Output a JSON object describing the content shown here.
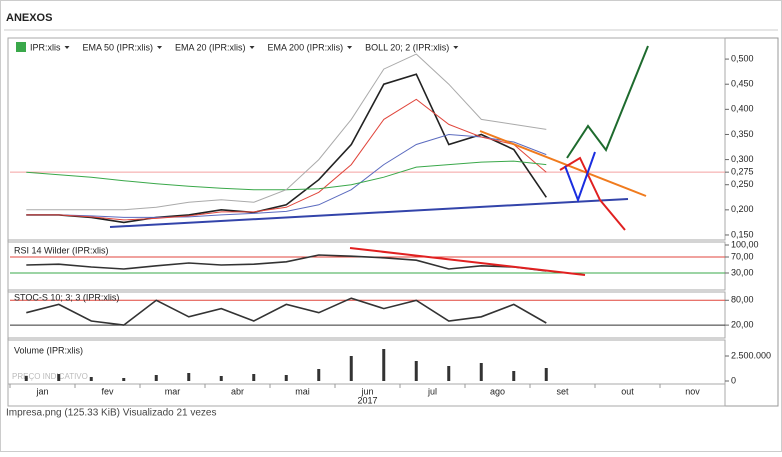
{
  "header": {
    "title": "ANEXOS"
  },
  "caption": "Impresa.png (125.33 KiB) Visualizado 21 vezes",
  "chart_data": [
    {
      "type": "line",
      "x_label": "2017",
      "categories": [
        "jan",
        null,
        "fev",
        null,
        "mar",
        null,
        "abr",
        null,
        "mai",
        null,
        "jun",
        null,
        "jul",
        null,
        "ago",
        null,
        "set",
        null,
        "out",
        null,
        "nov",
        null
      ],
      "ylim": [
        0.14,
        0.53
      ],
      "yticks": [
        {
          "value": 0.15,
          "label": "0,150"
        },
        {
          "value": 0.2,
          "label": "0,200"
        },
        {
          "value": 0.25,
          "label": "0,250"
        },
        {
          "value": 0.275,
          "label": "0,275",
          "color": "#f4a0a0"
        },
        {
          "value": 0.3,
          "label": "0,300"
        },
        {
          "value": 0.35,
          "label": "0,350"
        },
        {
          "value": 0.4,
          "label": "0,400"
        },
        {
          "value": 0.45,
          "label": "0,450"
        },
        {
          "value": 0.5,
          "label": "0,500"
        }
      ],
      "series": [
        {
          "name": "IPR:xlis",
          "color": "#222222",
          "values": [
            0.19,
            0.19,
            0.185,
            0.175,
            0.185,
            0.19,
            0.2,
            0.195,
            0.21,
            0.26,
            0.33,
            0.45,
            0.47,
            0.33,
            0.35,
            0.32,
            0.225,
            null,
            null,
            null,
            null,
            null
          ]
        },
        {
          "name": "EMA 50 (IPR:xlis)",
          "color": "#5b6bbf",
          "values": [
            0.19,
            0.19,
            0.188,
            0.185,
            0.185,
            0.186,
            0.19,
            0.193,
            0.197,
            0.21,
            0.24,
            0.29,
            0.33,
            0.35,
            0.345,
            0.335,
            0.31,
            null,
            null,
            null,
            null,
            null
          ]
        },
        {
          "name": "EMA 20 (IPR:xlis)",
          "color": "#e0463c",
          "values": [
            0.19,
            0.19,
            0.186,
            0.18,
            0.183,
            0.188,
            0.196,
            0.196,
            0.205,
            0.235,
            0.29,
            0.38,
            0.42,
            0.37,
            0.345,
            0.33,
            0.275,
            null,
            null,
            null,
            null,
            null
          ]
        },
        {
          "name": "EMA 200 (IPR:xlis)",
          "color": "#3aa84a",
          "values": [
            0.275,
            0.27,
            0.265,
            0.258,
            0.252,
            0.247,
            0.243,
            0.24,
            0.24,
            0.242,
            0.25,
            0.265,
            0.285,
            0.29,
            0.295,
            0.297,
            0.29,
            null,
            null,
            null,
            null,
            null
          ]
        },
        {
          "name": "BOLL 20; 2 (IPR:xlis)",
          "color": "#aaaaaa",
          "values": [
            0.2,
            0.2,
            0.2,
            0.2,
            0.205,
            0.215,
            0.22,
            0.215,
            0.24,
            0.3,
            0.38,
            0.48,
            0.51,
            0.45,
            0.38,
            0.37,
            0.36,
            null,
            null,
            null,
            null,
            null
          ]
        }
      ]
    },
    {
      "type": "line",
      "title": "RSI 14 Wilder (IPR:xlis)",
      "ylim": [
        -5,
        100
      ],
      "yticks": [
        {
          "value": 30,
          "label": "30,00",
          "color": "#3aa84a"
        },
        {
          "value": 70,
          "label": "70,00",
          "color": "#e0463c"
        },
        {
          "value": 100,
          "label": "100,00"
        }
      ],
      "series": [
        {
          "name": "RSI",
          "color": "#333333",
          "values": [
            50,
            52,
            45,
            40,
            48,
            55,
            50,
            52,
            58,
            75,
            72,
            68,
            62,
            40,
            48,
            45,
            35,
            null,
            null,
            null,
            null,
            null
          ]
        }
      ]
    },
    {
      "type": "line",
      "title": "STOC-S 10; 3; 3 (IPR:xlis)",
      "ylim": [
        -8,
        100
      ],
      "yticks": [
        {
          "value": 20,
          "label": "20,00",
          "color": "#333333"
        },
        {
          "value": 80,
          "label": "80,00",
          "color": "#e0463c"
        }
      ],
      "series": [
        {
          "name": "STOC",
          "color": "#333333",
          "values": [
            50,
            70,
            30,
            20,
            80,
            40,
            60,
            30,
            70,
            50,
            85,
            60,
            80,
            30,
            40,
            70,
            25,
            null,
            null,
            null,
            null,
            null
          ]
        }
      ]
    },
    {
      "type": "bar",
      "title": "Volume (IPR:xlis)",
      "watermark": "PREÇO INDICATIVO",
      "color": "#333333",
      "ylim": [
        0,
        4000000
      ],
      "yticks": [
        0,
        {
          "value": 2500000,
          "label": "2.500.000"
        }
      ],
      "values": [
        500000,
        700000,
        400000,
        300000,
        600000,
        800000,
        500000,
        700000,
        600000,
        1200000,
        2500000,
        3200000,
        2000000,
        1500000,
        1800000,
        1000000,
        1300000,
        null,
        null,
        null,
        null,
        null
      ]
    }
  ]
}
